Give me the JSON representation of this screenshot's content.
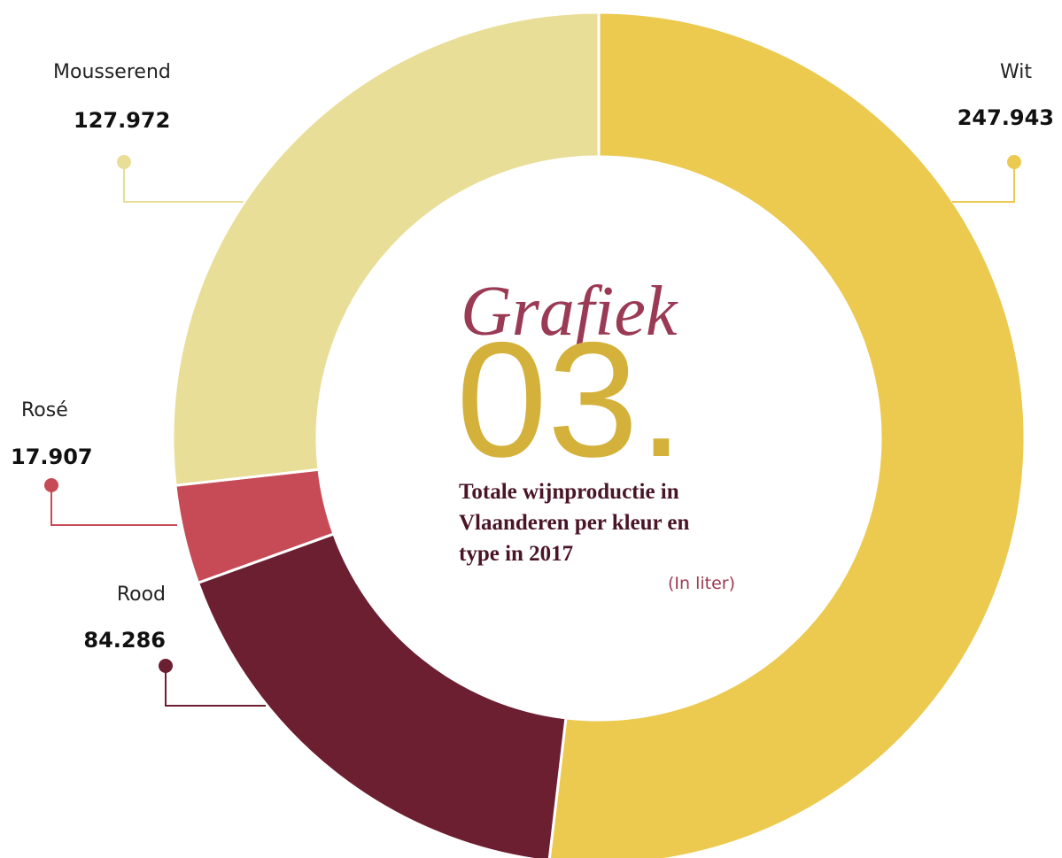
{
  "chart_data": {
    "type": "donut",
    "heading": "Grafiek",
    "number": "03.",
    "title": "Totale wijnproductie in Vlaanderen per kleur en type in 2017",
    "unit_note": "(In liter)",
    "categories": [
      "Wit",
      "Rood",
      "Rosé",
      "Mousserend"
    ],
    "values": [
      247943,
      84286,
      17907,
      127972
    ],
    "value_labels": [
      "247.943",
      "84.286",
      "17.907",
      "127.972"
    ],
    "colors": [
      "#ecc94f",
      "#6d1f32",
      "#c74b56",
      "#e8de97"
    ]
  }
}
